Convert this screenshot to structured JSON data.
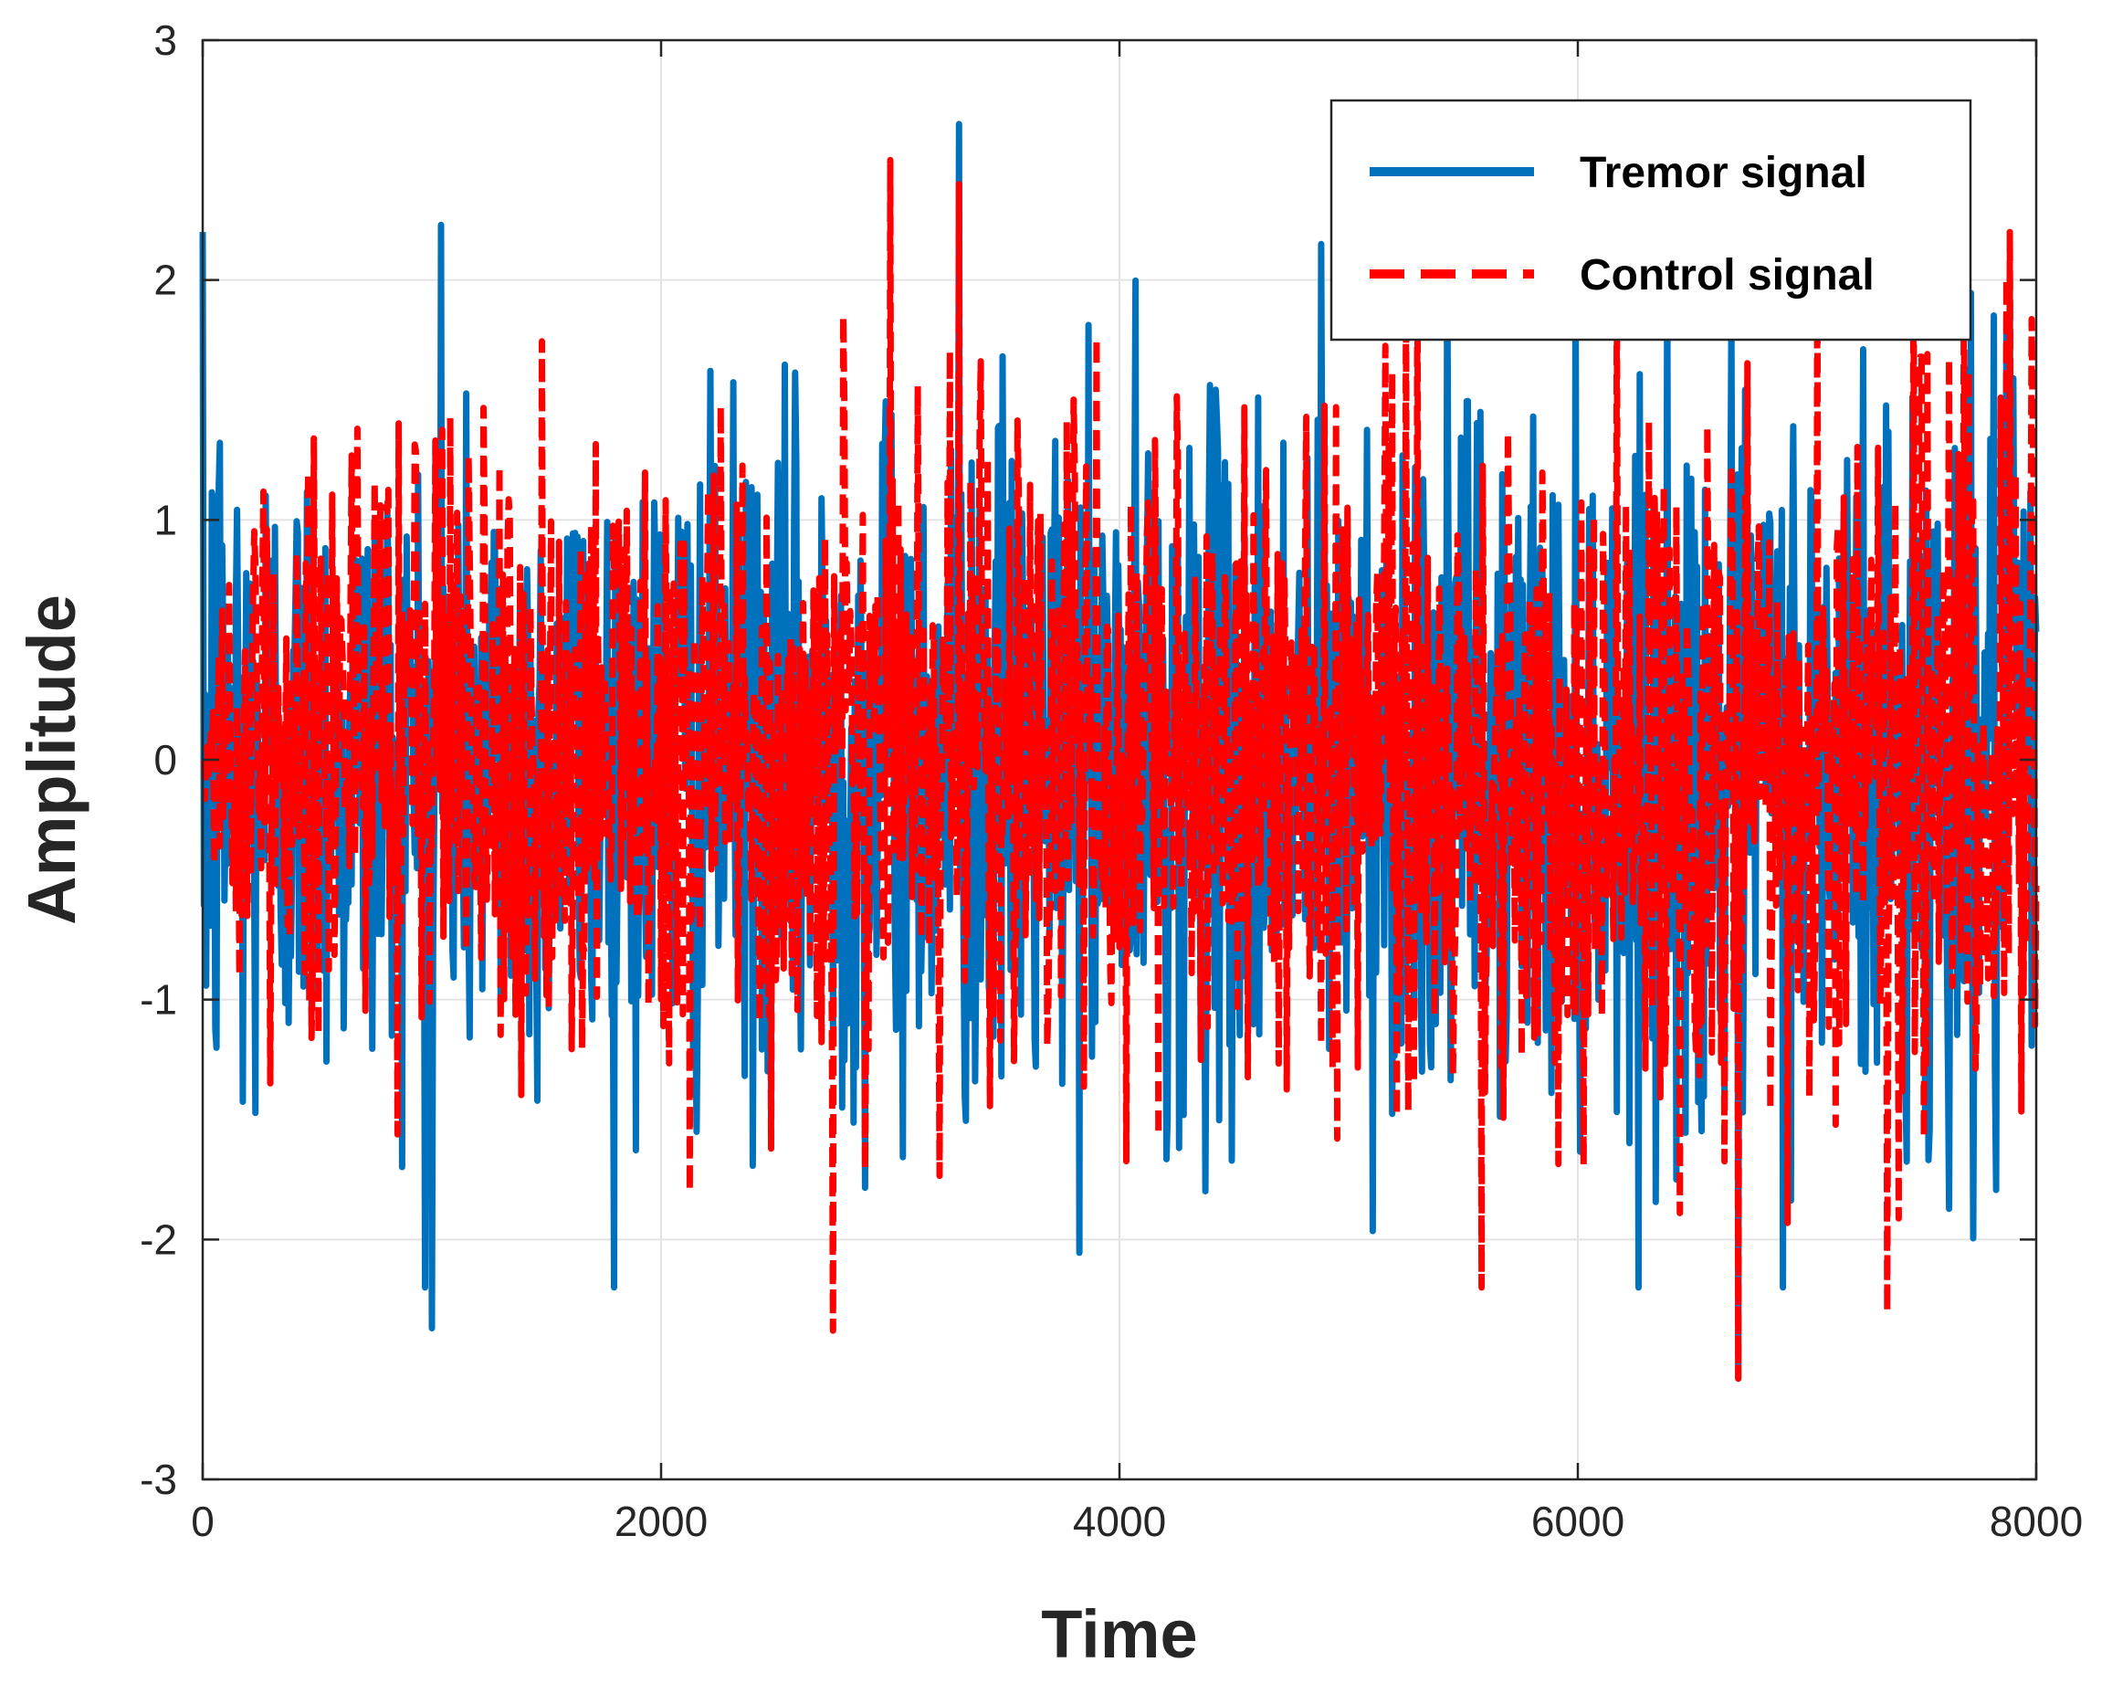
{
  "chart_data": {
    "type": "line",
    "title": "",
    "xlabel": "Time",
    "ylabel": "Amplitude",
    "xlim": [
      0,
      8000
    ],
    "ylim": [
      -3,
      3
    ],
    "xticks": [
      0,
      2000,
      4000,
      6000,
      8000
    ],
    "yticks": [
      -3,
      -2,
      -1,
      0,
      1,
      2,
      3
    ],
    "xtick_labels": [
      "0",
      "2000",
      "4000",
      "6000",
      "8000"
    ],
    "ytick_labels": [
      "-3",
      "-2",
      "-1",
      "0",
      "1",
      "2",
      "3"
    ],
    "grid": true,
    "legend_position": "top-right",
    "series": [
      {
        "name": "Tremor signal",
        "color": "#0072BD",
        "style": "solid",
        "n_samples": 8000,
        "envelope": {
          "x": [
            0,
            100,
            200,
            400,
            1000,
            2000,
            3000,
            4000,
            5000,
            6000,
            7000,
            8000
          ],
          "typical_amplitude": [
            1.5,
            1.6,
            1.5,
            1.2,
            1.2,
            1.2,
            1.3,
            1.3,
            1.3,
            1.3,
            1.4,
            1.5
          ]
        },
        "peaks": [
          {
            "x": 1040,
            "y": 2.23
          },
          {
            "x": 3300,
            "y": 2.65
          },
          {
            "x": 4880,
            "y": 2.15
          },
          {
            "x": 1000,
            "y": -2.37
          },
          {
            "x": 6700,
            "y": -2.58
          }
        ]
      },
      {
        "name": "Control signal",
        "color": "#FF0000",
        "style": "dashed",
        "n_samples": 8000,
        "envelope": {
          "x": [
            0,
            100,
            200,
            400,
            1000,
            2000,
            3000,
            4000,
            5000,
            6000,
            7000,
            8000
          ],
          "typical_amplitude": [
            0.2,
            0.6,
            0.9,
            1.0,
            1.1,
            1.15,
            1.2,
            1.2,
            1.2,
            1.25,
            1.3,
            1.4
          ]
        },
        "peaks": [
          {
            "x": 3000,
            "y": 2.5
          },
          {
            "x": 3300,
            "y": 2.4
          },
          {
            "x": 2750,
            "y": -2.38
          },
          {
            "x": 6700,
            "y": -2.58
          },
          {
            "x": 7350,
            "y": -2.3
          }
        ]
      }
    ]
  }
}
